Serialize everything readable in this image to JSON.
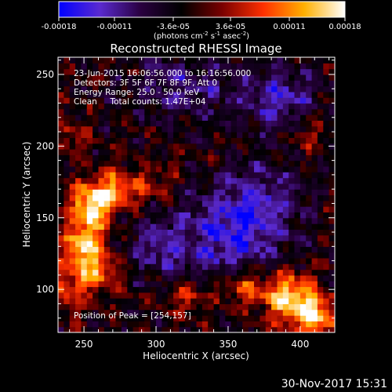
{
  "chart_data": {
    "type": "heatmap",
    "title": "Reconstructed RHESSI Image",
    "xlabel": "Heliocentric X (arcsec)",
    "ylabel": "Heliocentric Y (arcsec)",
    "xlim": [
      232,
      424
    ],
    "ylim": [
      70,
      262
    ],
    "x_ticks": [
      250,
      300,
      350,
      400
    ],
    "y_ticks": [
      100,
      150,
      200,
      250
    ],
    "colorbar": {
      "range": [
        -0.00018,
        0.00018
      ],
      "ticks": [
        -0.00018,
        -0.00011,
        -3.6e-05,
        3.6e-05,
        0.00011,
        0.00018
      ],
      "tick_labels": [
        "-0.00018",
        "-0.00011",
        "-3.6e-05",
        "3.6e-05",
        "0.00011",
        "0.00018"
      ],
      "label_main": "(photons cm",
      "label_exp1": "-2",
      "label_mid": " s",
      "label_exp2": "-1",
      "label_end": " asec",
      "label_exp3": "-2",
      "label_close": ")",
      "colormap": [
        "#0000ff",
        "#5a2ad0",
        "#2a0040",
        "#000000",
        "#7a0000",
        "#ff3000",
        "#ffb000",
        "#ffffff"
      ]
    },
    "annotations": [
      "23-Jun-2015 16:06:56.000 to 16:16:56.000",
      "Detectors: 3F 5F 6F 7F 8F 9F, Att 0",
      "Energy Range: 25.0 - 50.0 keV",
      "Clean     Total counts: 1.47E+04"
    ],
    "peak_label": "Position of Peak = [254,157]",
    "peak": [
      254,
      157
    ],
    "sources": [
      {
        "x": 254,
        "y": 157,
        "amp": 1.0,
        "sx": 9,
        "sy": 11
      },
      {
        "x": 272,
        "y": 170,
        "amp": 0.75,
        "sx": 12,
        "sy": 9
      },
      {
        "x": 250,
        "y": 128,
        "amp": 0.95,
        "sx": 10,
        "sy": 12
      },
      {
        "x": 262,
        "y": 110,
        "amp": 0.6,
        "sx": 9,
        "sy": 8
      },
      {
        "x": 240,
        "y": 100,
        "amp": 0.55,
        "sx": 8,
        "sy": 10
      },
      {
        "x": 392,
        "y": 95,
        "amp": 0.95,
        "sx": 12,
        "sy": 12
      },
      {
        "x": 410,
        "y": 82,
        "amp": 0.9,
        "sx": 10,
        "sy": 10
      },
      {
        "x": 360,
        "y": 102,
        "amp": 0.6,
        "sx": 12,
        "sy": 8
      },
      {
        "x": 322,
        "y": 96,
        "amp": 0.45,
        "sx": 9,
        "sy": 8
      },
      {
        "x": 240,
        "y": 208,
        "amp": 0.35,
        "sx": 7,
        "sy": 9
      },
      {
        "x": 405,
        "y": 210,
        "amp": 0.3,
        "sx": 9,
        "sy": 9
      },
      {
        "x": 300,
        "y": 175,
        "amp": 0.3,
        "sx": 10,
        "sy": 8
      }
    ],
    "negative_regions": [
      {
        "x": 345,
        "y": 135,
        "amp": -0.55,
        "sx": 25,
        "sy": 22
      },
      {
        "x": 372,
        "y": 160,
        "amp": -0.5,
        "sx": 20,
        "sy": 20
      },
      {
        "x": 385,
        "y": 235,
        "amp": -0.55,
        "sx": 18,
        "sy": 16
      },
      {
        "x": 320,
        "y": 240,
        "amp": -0.4,
        "sx": 25,
        "sy": 15
      },
      {
        "x": 300,
        "y": 130,
        "amp": -0.35,
        "sx": 15,
        "sy": 15
      }
    ]
  },
  "footer": {
    "date": "30-Nov-2017 15:31"
  }
}
